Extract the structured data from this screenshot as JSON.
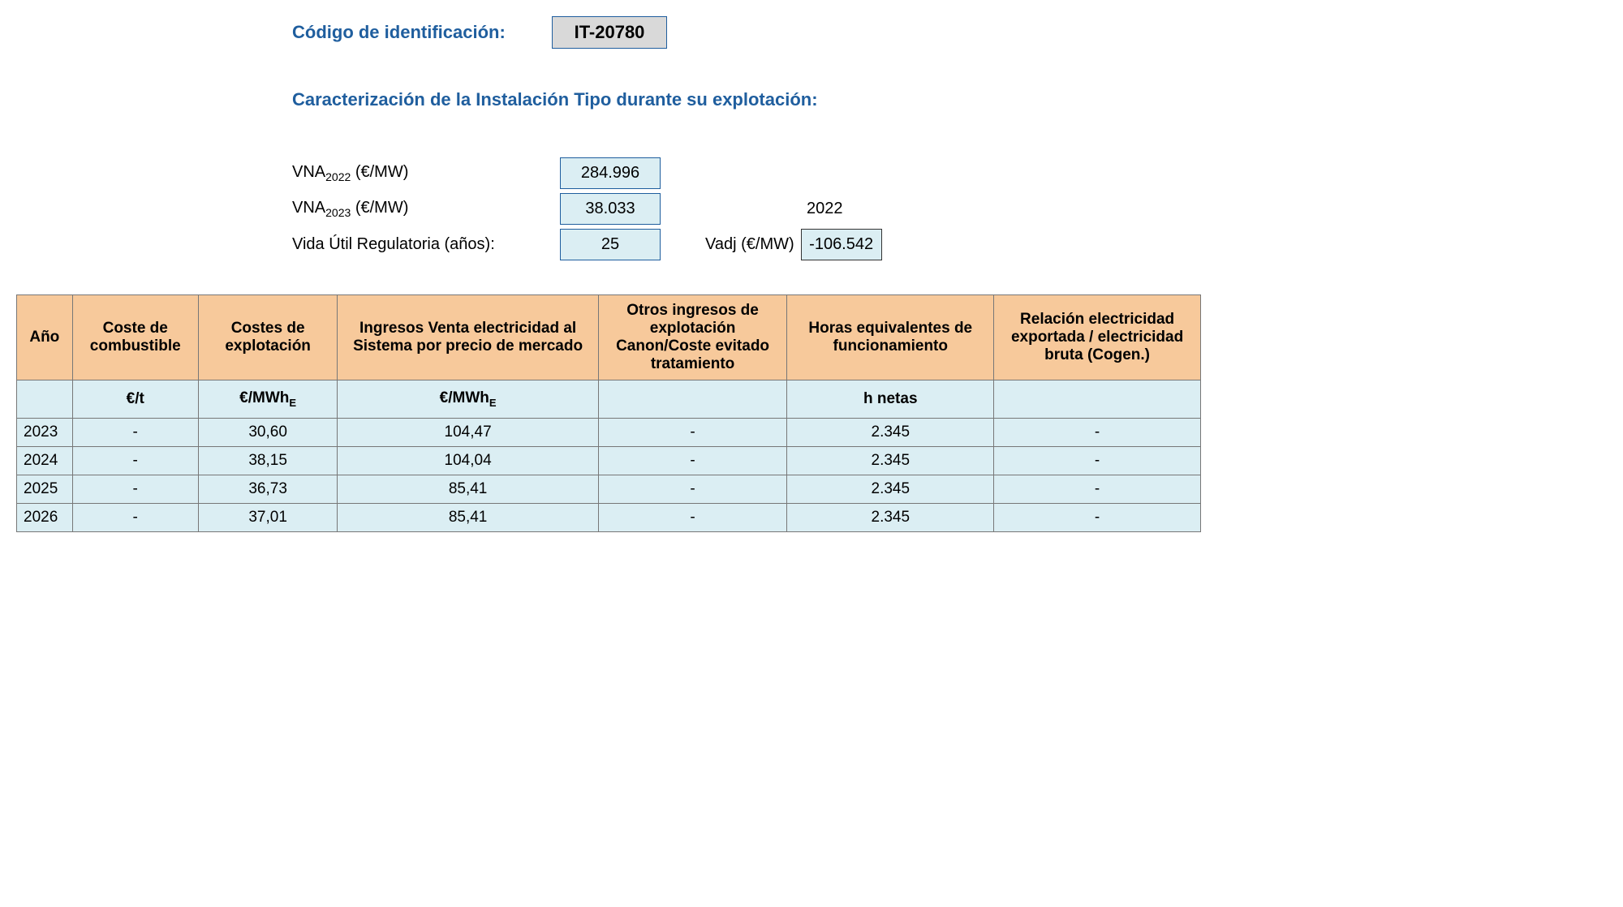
{
  "header": {
    "code_label": "Código de identificación:",
    "code_value": "IT-20780"
  },
  "section_title": "Caracterización de la Instalación Tipo durante su explotación:",
  "params": {
    "vna2022_label_pre": "VNA",
    "vna2022_sub": "2022",
    "vna2022_label_post": " (€/MW)",
    "vna2022_value": "284.996",
    "vna2023_label_pre": "VNA",
    "vna2023_sub": "2023",
    "vna2023_label_post": " (€/MW)",
    "vna2023_value": "38.033",
    "plain_year": "2022",
    "life_label": "Vida Útil Regulatoria (años):",
    "life_value": "25",
    "vadj_label": "Vadj (€/MW)",
    "vadj_value": "-106.542"
  },
  "table": {
    "headers": {
      "year": "Año",
      "fuel": "Coste de combustible",
      "opex": "Costes de explotación",
      "revenue": "Ingresos Venta electricidad al Sistema por precio de mercado",
      "other": "Otros ingresos de explotación Canon/Coste evitado tratamiento",
      "hours": "Horas equivalentes de funcionamiento",
      "ratio": "Relación electricidad exportada / electricidad bruta (Cogen.)"
    },
    "units": {
      "year": "",
      "fuel": "€/t",
      "opex_pre": "€/MWh",
      "opex_sub": "E",
      "rev_pre": "€/MWh",
      "rev_sub": "E",
      "other": "",
      "hours": "h netas",
      "ratio": ""
    },
    "rows": [
      {
        "year": "2023",
        "fuel": "-",
        "opex": "30,60",
        "rev": "104,47",
        "other": "-",
        "hours": "2.345",
        "ratio": "-"
      },
      {
        "year": "2024",
        "fuel": "-",
        "opex": "38,15",
        "rev": "104,04",
        "other": "-",
        "hours": "2.345",
        "ratio": "-"
      },
      {
        "year": "2025",
        "fuel": "-",
        "opex": "36,73",
        "rev": "85,41",
        "other": "-",
        "hours": "2.345",
        "ratio": "-"
      },
      {
        "year": "2026",
        "fuel": "-",
        "opex": "37,01",
        "rev": "85,41",
        "other": "-",
        "hours": "2.345",
        "ratio": "-"
      }
    ]
  },
  "colors": {
    "header_bg": "#f7c99b",
    "cell_bg": "#dbeef3",
    "accent": "#1f5e9e",
    "code_bg": "#d9d9d9"
  }
}
